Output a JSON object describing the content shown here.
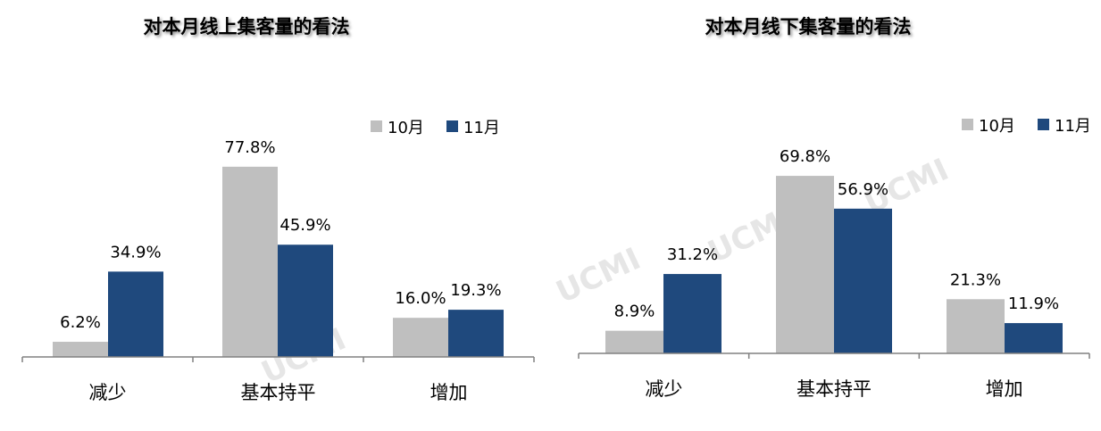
{
  "watermark": "UCMI",
  "colors": {
    "10月": "#bfbfbf",
    "11月": "#1f497d",
    "axis": "#808080"
  },
  "chart_data": [
    {
      "type": "bar",
      "title": "对本月线上集客量的看法",
      "categories": [
        "减少",
        "基本持平",
        "增加"
      ],
      "series": [
        {
          "name": "10月",
          "values": [
            6.2,
            77.8,
            16.0
          ],
          "labels": [
            "6.2%",
            "77.8%",
            "16.0%"
          ]
        },
        {
          "name": "11月",
          "values": [
            34.9,
            45.9,
            19.3
          ],
          "labels": [
            "34.9%",
            "45.9%",
            "19.3%"
          ]
        }
      ],
      "unit": "%",
      "legend": "top-right",
      "grid": false
    },
    {
      "type": "bar",
      "title": "对本月线下集客量的看法",
      "categories": [
        "减少",
        "基本持平",
        "增加"
      ],
      "series": [
        {
          "name": "10月",
          "values": [
            8.9,
            69.8,
            21.3
          ],
          "labels": [
            "8.9%",
            "69.8%",
            "21.3%"
          ]
        },
        {
          "name": "11月",
          "values": [
            31.2,
            56.9,
            11.9
          ],
          "labels": [
            "31.2%",
            "56.9%",
            "11.9%"
          ]
        }
      ],
      "unit": "%",
      "legend": "top-right",
      "grid": false
    }
  ]
}
